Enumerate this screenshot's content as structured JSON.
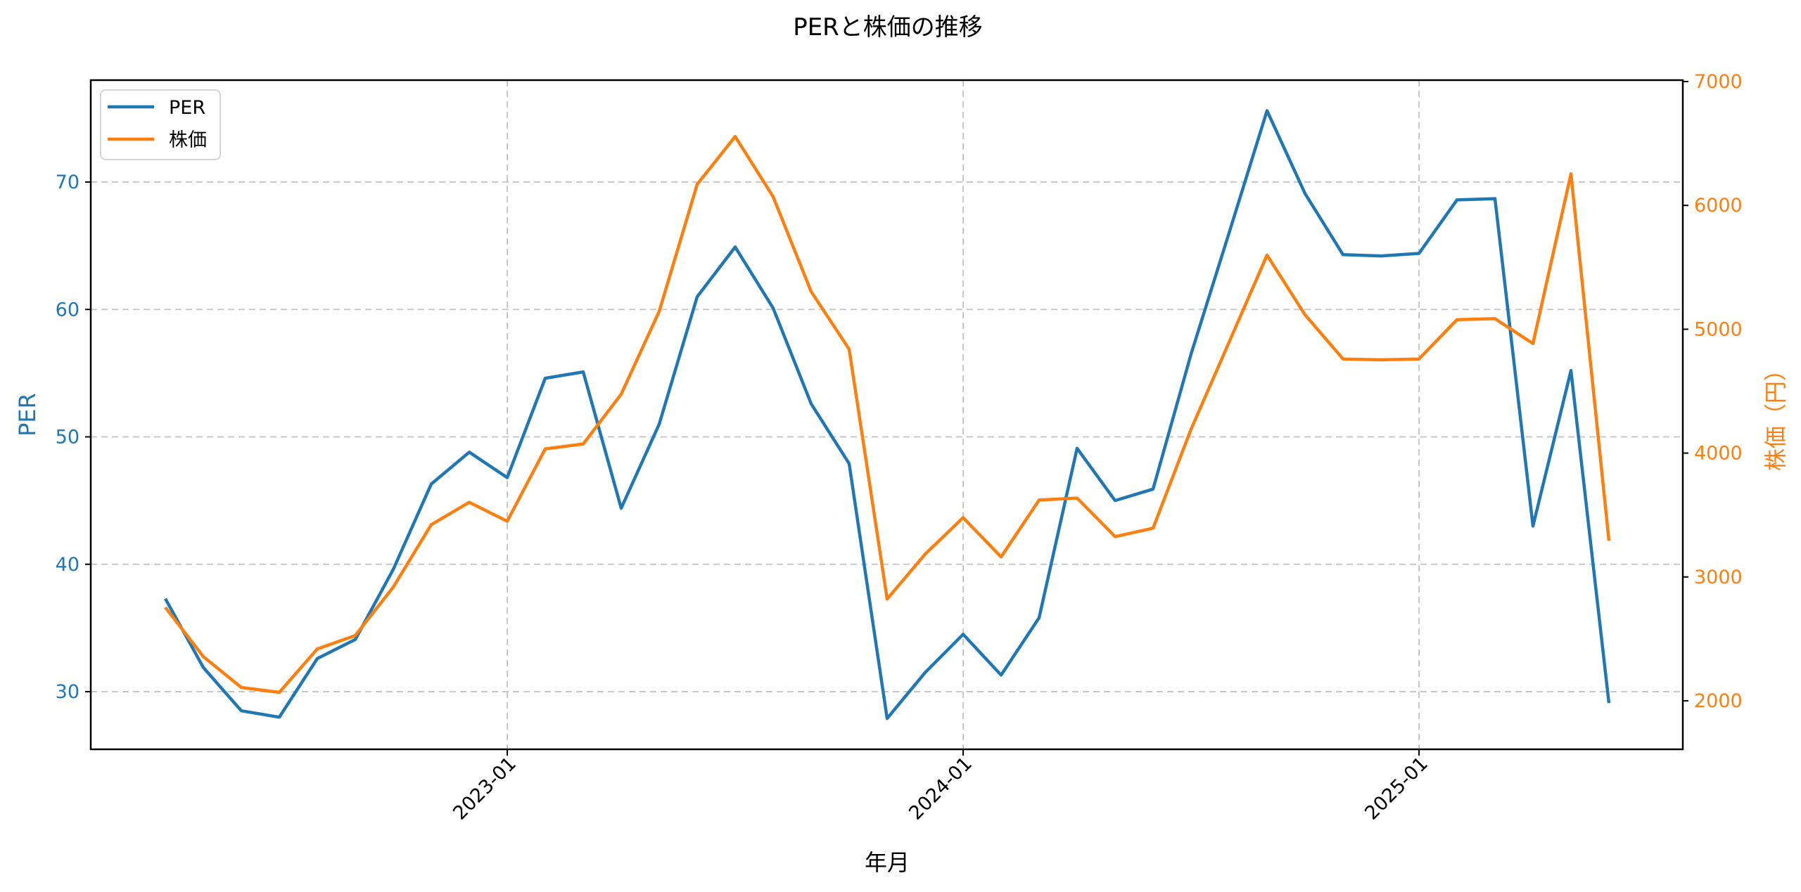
{
  "chart_data": {
    "type": "line",
    "title": "PERと株価の推移",
    "xlabel": "年月",
    "ylabel_left": "PER",
    "ylabel_right": "株価（円）",
    "x": [
      "2022-04",
      "2022-05",
      "2022-06",
      "2022-07",
      "2022-08",
      "2022-09",
      "2022-10",
      "2022-11",
      "2022-12",
      "2023-01",
      "2023-02",
      "2023-03",
      "2023-04",
      "2023-05",
      "2023-06",
      "2023-07",
      "2023-08",
      "2023-09",
      "2023-10",
      "2023-11",
      "2023-12",
      "2024-01",
      "2024-02",
      "2024-03",
      "2024-04",
      "2024-05",
      "2024-06",
      "2024-07",
      "2024-08",
      "2024-09",
      "2024-10",
      "2024-11",
      "2024-12",
      "2025-01",
      "2025-02",
      "2025-03",
      "2025-04",
      "2025-05",
      "2025-06"
    ],
    "x_ticks": [
      "2023-01",
      "2024-01",
      "2025-01"
    ],
    "series": [
      {
        "name": "PER",
        "axis": "left",
        "color": "#1f77b4",
        "values": [
          37.3,
          31.9,
          28.5,
          28.0,
          32.6,
          34.1,
          39.6,
          46.3,
          48.8,
          46.8,
          54.6,
          55.1,
          44.4,
          51.0,
          61.0,
          64.9,
          60.1,
          52.6,
          47.9,
          27.9,
          31.5,
          34.5,
          31.3,
          35.8,
          49.1,
          45.0,
          45.9,
          56.5,
          66.0,
          75.6,
          69.1,
          64.3,
          64.2,
          64.4,
          68.6,
          68.7,
          43.0,
          55.2,
          29.1
        ]
      },
      {
        "name": "株価",
        "axis": "right",
        "color": "#ff7f0e",
        "values": [
          2754,
          2357,
          2108,
          2068,
          2419,
          2527,
          2918,
          3422,
          3603,
          3450,
          4034,
          4074,
          4476,
          5145,
          6170,
          6556,
          6069,
          5304,
          4839,
          2822,
          3184,
          3479,
          3162,
          3621,
          3637,
          3326,
          3394,
          4193,
          4895,
          5598,
          5117,
          4760,
          4753,
          4760,
          5077,
          5085,
          4884,
          6255,
          3292
        ]
      }
    ],
    "y_left": {
      "ticks": [
        30,
        40,
        50,
        60,
        70
      ],
      "range": [
        25.5,
        78.0
      ],
      "color": "#1f77b4"
    },
    "y_right": {
      "ticks": [
        2000,
        3000,
        4000,
        5000,
        6000,
        7000
      ],
      "range": [
        1610,
        7020
      ],
      "color": "#ff7f0e"
    },
    "grid": true,
    "grid_style": "dashed",
    "legend": {
      "position": "upper left",
      "entries": [
        "PER",
        "株価"
      ]
    }
  }
}
